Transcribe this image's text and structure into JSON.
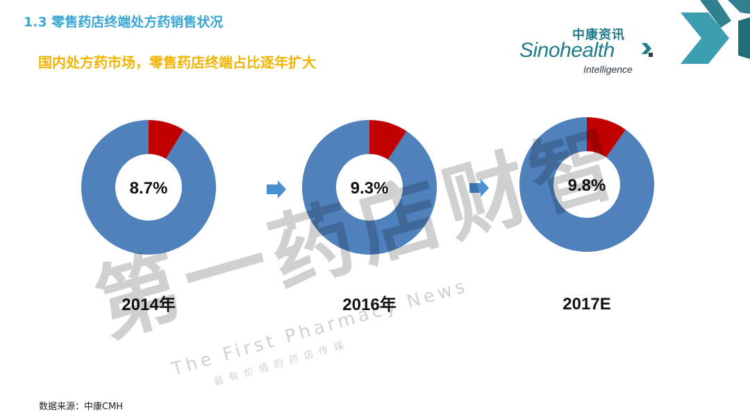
{
  "slide": {
    "title": "1.3 零售药店终端处方药销售状况",
    "subtitle": "国内处方药市场，零售药店终端占比逐年扩大",
    "source": "数据来源：中康CMH"
  },
  "logo": {
    "cn": "中康资讯",
    "en": "Sinohealth",
    "sub": "Intelligence"
  },
  "watermark": {
    "main": "第一药店财智",
    "en": "The First Pharmacy News",
    "cn_small": "最 有 价 值 的 药 店 传 媒"
  },
  "colors": {
    "blue": "#4f81bd",
    "red": "#c00000",
    "arrow": "#4a8fd0",
    "title": "#3aa6d6",
    "subtitle": "#f2b400",
    "teal": "#1f7a8a"
  },
  "chart_data": {
    "type": "pie",
    "donut": true,
    "charts": [
      {
        "category": "2014年",
        "value": 8.7,
        "label": "8.7%"
      },
      {
        "category": "2016年",
        "value": 9.3,
        "label": "9.3%"
      },
      {
        "category": "2017E",
        "value": 9.8,
        "label": "9.8%"
      }
    ]
  }
}
